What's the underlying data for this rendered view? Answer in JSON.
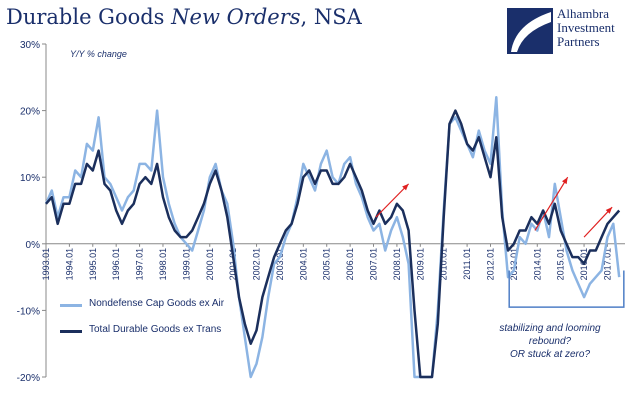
{
  "title": {
    "part1": "Durable Goods ",
    "part2": "New Orders",
    "part3": ", NSA"
  },
  "logo": {
    "line1": "Alhambra",
    "line2": "Investment",
    "line3": "Partners"
  },
  "annotation": {
    "line1": "stabilizing and looming",
    "line2": "rebound?",
    "line3": "OR stuck at zero?"
  },
  "colors": {
    "series1": "#8cb4e3",
    "series2": "#1b2f5c",
    "arrow": "#e02020",
    "bracket": "#4f7fc6",
    "text": "#1a2f6b"
  },
  "chart_data": {
    "type": "line",
    "title": "Durable Goods New Orders, NSA",
    "ylabel": "Y/Y % change",
    "xlabel": "",
    "ylim": [
      -20,
      30
    ],
    "yticks": [
      "30%",
      "20%",
      "10%",
      "0%",
      "-10%",
      "-20%"
    ],
    "ytick_values": [
      30,
      20,
      10,
      0,
      -10,
      -20
    ],
    "xticks": [
      "1993.01",
      "1994.01",
      "1995.01",
      "1996.01",
      "1997.01",
      "1998.01",
      "1999.01",
      "2000.01",
      "2001.01",
      "2002.01",
      "2003.01",
      "2004.01",
      "2005.01",
      "2006.01",
      "2007.01",
      "2008.01",
      "2009.01",
      "2010.01",
      "2011.01",
      "2012.01",
      "2013.01",
      "2014.01",
      "2015.01",
      "2016.01",
      "2017.01"
    ],
    "legend_position": "bottom-left",
    "series": [
      {
        "name": "Nondefense Cap Goods ex Air",
        "values": [
          [
            1993.0,
            6
          ],
          [
            1993.25,
            8
          ],
          [
            1993.5,
            4
          ],
          [
            1993.75,
            7
          ],
          [
            1994.0,
            7
          ],
          [
            1994.25,
            11
          ],
          [
            1994.5,
            10
          ],
          [
            1994.75,
            15
          ],
          [
            1995.0,
            14
          ],
          [
            1995.25,
            19
          ],
          [
            1995.5,
            10
          ],
          [
            1995.75,
            9
          ],
          [
            1996.0,
            7
          ],
          [
            1996.25,
            5
          ],
          [
            1996.5,
            7
          ],
          [
            1996.75,
            8
          ],
          [
            1997.0,
            12
          ],
          [
            1997.25,
            12
          ],
          [
            1997.5,
            11
          ],
          [
            1997.75,
            20
          ],
          [
            1998.0,
            10
          ],
          [
            1998.25,
            6
          ],
          [
            1998.5,
            3
          ],
          [
            1998.75,
            1
          ],
          [
            1999.0,
            0
          ],
          [
            1999.25,
            -1
          ],
          [
            1999.5,
            2
          ],
          [
            1999.75,
            5
          ],
          [
            2000.0,
            10
          ],
          [
            2000.25,
            12
          ],
          [
            2000.5,
            8
          ],
          [
            2000.75,
            6
          ],
          [
            2001.0,
            0
          ],
          [
            2001.25,
            -8
          ],
          [
            2001.5,
            -14
          ],
          [
            2001.75,
            -20
          ],
          [
            2002.0,
            -18
          ],
          [
            2002.25,
            -14
          ],
          [
            2002.5,
            -8
          ],
          [
            2002.75,
            -3
          ],
          [
            2003.0,
            -2
          ],
          [
            2003.25,
            1
          ],
          [
            2003.5,
            3
          ],
          [
            2003.75,
            7
          ],
          [
            2004.0,
            12
          ],
          [
            2004.25,
            10
          ],
          [
            2004.5,
            8
          ],
          [
            2004.75,
            12
          ],
          [
            2005.0,
            14
          ],
          [
            2005.25,
            10
          ],
          [
            2005.5,
            9
          ],
          [
            2005.75,
            12
          ],
          [
            2006.0,
            13
          ],
          [
            2006.25,
            9
          ],
          [
            2006.5,
            7
          ],
          [
            2006.75,
            4
          ],
          [
            2007.0,
            2
          ],
          [
            2007.25,
            3
          ],
          [
            2007.5,
            -1
          ],
          [
            2007.75,
            2
          ],
          [
            2008.0,
            4
          ],
          [
            2008.25,
            1
          ],
          [
            2008.5,
            -3
          ],
          [
            2008.75,
            -20
          ],
          [
            2009.0,
            -20
          ],
          [
            2009.25,
            -20
          ],
          [
            2009.5,
            -20
          ],
          [
            2009.75,
            -10
          ],
          [
            2010.0,
            5
          ],
          [
            2010.25,
            18
          ],
          [
            2010.5,
            19
          ],
          [
            2010.75,
            17
          ],
          [
            2011.0,
            15
          ],
          [
            2011.25,
            13
          ],
          [
            2011.5,
            17
          ],
          [
            2011.75,
            14
          ],
          [
            2012.0,
            12
          ],
          [
            2012.25,
            22
          ],
          [
            2012.5,
            5
          ],
          [
            2012.75,
            -5
          ],
          [
            2013.0,
            -4
          ],
          [
            2013.25,
            1
          ],
          [
            2013.5,
            0
          ],
          [
            2013.75,
            3
          ],
          [
            2014.0,
            2
          ],
          [
            2014.25,
            5
          ],
          [
            2014.5,
            1
          ],
          [
            2014.75,
            9
          ],
          [
            2015.0,
            4
          ],
          [
            2015.25,
            -1
          ],
          [
            2015.5,
            -4
          ],
          [
            2015.75,
            -6
          ],
          [
            2016.0,
            -8
          ],
          [
            2016.25,
            -6
          ],
          [
            2016.5,
            -5
          ],
          [
            2016.75,
            -4
          ],
          [
            2017.0,
            1
          ],
          [
            2017.25,
            3
          ],
          [
            2017.5,
            -5
          ]
        ]
      },
      {
        "name": "Total Durable Goods ex Trans",
        "values": [
          [
            1993.0,
            6
          ],
          [
            1993.25,
            7
          ],
          [
            1993.5,
            3
          ],
          [
            1993.75,
            6
          ],
          [
            1994.0,
            6
          ],
          [
            1994.25,
            9
          ],
          [
            1994.5,
            9
          ],
          [
            1994.75,
            12
          ],
          [
            1995.0,
            11
          ],
          [
            1995.25,
            14
          ],
          [
            1995.5,
            9
          ],
          [
            1995.75,
            8
          ],
          [
            1996.0,
            5
          ],
          [
            1996.25,
            3
          ],
          [
            1996.5,
            5
          ],
          [
            1996.75,
            6
          ],
          [
            1997.0,
            9
          ],
          [
            1997.25,
            10
          ],
          [
            1997.5,
            9
          ],
          [
            1997.75,
            12
          ],
          [
            1998.0,
            7
          ],
          [
            1998.25,
            4
          ],
          [
            1998.5,
            2
          ],
          [
            1998.75,
            1
          ],
          [
            1999.0,
            1
          ],
          [
            1999.25,
            2
          ],
          [
            1999.5,
            4
          ],
          [
            1999.75,
            6
          ],
          [
            2000.0,
            9
          ],
          [
            2000.25,
            11
          ],
          [
            2000.5,
            8
          ],
          [
            2000.75,
            4
          ],
          [
            2001.0,
            -2
          ],
          [
            2001.25,
            -8
          ],
          [
            2001.5,
            -12
          ],
          [
            2001.75,
            -15
          ],
          [
            2002.0,
            -13
          ],
          [
            2002.25,
            -8
          ],
          [
            2002.5,
            -5
          ],
          [
            2002.75,
            -2
          ],
          [
            2003.0,
            0
          ],
          [
            2003.25,
            2
          ],
          [
            2003.5,
            3
          ],
          [
            2003.75,
            6
          ],
          [
            2004.0,
            10
          ],
          [
            2004.25,
            11
          ],
          [
            2004.5,
            9
          ],
          [
            2004.75,
            11
          ],
          [
            2005.0,
            11
          ],
          [
            2005.25,
            9
          ],
          [
            2005.5,
            9
          ],
          [
            2005.75,
            10
          ],
          [
            2006.0,
            12
          ],
          [
            2006.25,
            10
          ],
          [
            2006.5,
            8
          ],
          [
            2006.75,
            5
          ],
          [
            2007.0,
            3
          ],
          [
            2007.25,
            5
          ],
          [
            2007.5,
            3
          ],
          [
            2007.75,
            4
          ],
          [
            2008.0,
            6
          ],
          [
            2008.25,
            5
          ],
          [
            2008.5,
            2
          ],
          [
            2008.75,
            -10
          ],
          [
            2009.0,
            -20
          ],
          [
            2009.25,
            -20
          ],
          [
            2009.5,
            -20
          ],
          [
            2009.75,
            -12
          ],
          [
            2010.0,
            4
          ],
          [
            2010.25,
            18
          ],
          [
            2010.5,
            20
          ],
          [
            2010.75,
            18
          ],
          [
            2011.0,
            15
          ],
          [
            2011.25,
            14
          ],
          [
            2011.5,
            16
          ],
          [
            2011.75,
            13
          ],
          [
            2012.0,
            10
          ],
          [
            2012.25,
            16
          ],
          [
            2012.5,
            4
          ],
          [
            2012.75,
            -1
          ],
          [
            2013.0,
            0
          ],
          [
            2013.25,
            2
          ],
          [
            2013.5,
            2
          ],
          [
            2013.75,
            4
          ],
          [
            2014.0,
            3
          ],
          [
            2014.25,
            5
          ],
          [
            2014.5,
            3
          ],
          [
            2014.75,
            6
          ],
          [
            2015.0,
            2
          ],
          [
            2015.25,
            0
          ],
          [
            2015.5,
            -2
          ],
          [
            2015.75,
            -2
          ],
          [
            2016.0,
            -3
          ],
          [
            2016.25,
            -1
          ],
          [
            2016.5,
            -1
          ],
          [
            2016.75,
            1
          ],
          [
            2017.0,
            3
          ],
          [
            2017.25,
            4
          ],
          [
            2017.5,
            5
          ]
        ]
      }
    ]
  }
}
